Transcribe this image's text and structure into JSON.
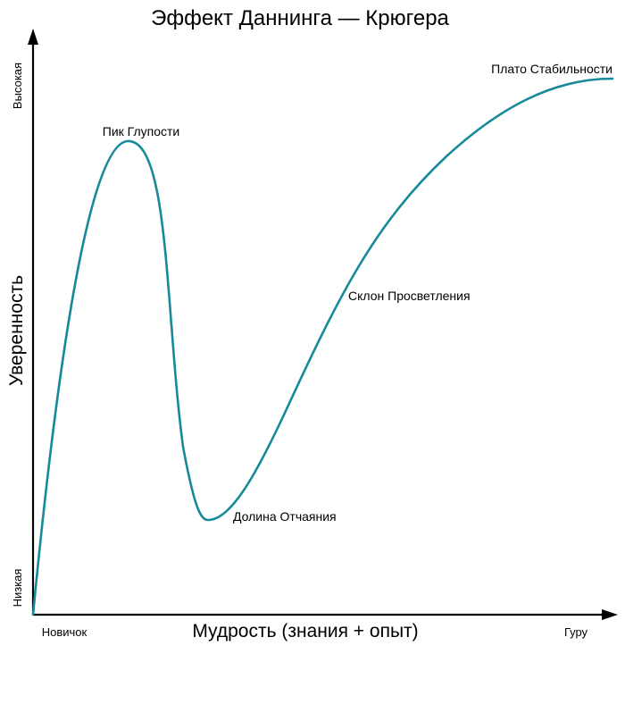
{
  "diagram": {
    "title": "Эффект Даннинга — Крюгера",
    "y_axis": {
      "label": "Уверенность",
      "high": "Высокая",
      "low": "Низкая"
    },
    "x_axis": {
      "label": "Мудрость (знания + опыт)",
      "start": "Новичок",
      "end": "Гуру"
    },
    "stages": [
      {
        "id": "peak",
        "label": "Пик Глупости"
      },
      {
        "id": "valley",
        "label": "Долина Отчаяния"
      },
      {
        "id": "slope",
        "label": "Склон Просветления"
      },
      {
        "id": "plateau",
        "label": "Плато Стабильности"
      }
    ],
    "curve_color": "#178a9a",
    "axis_color": "#000000"
  }
}
